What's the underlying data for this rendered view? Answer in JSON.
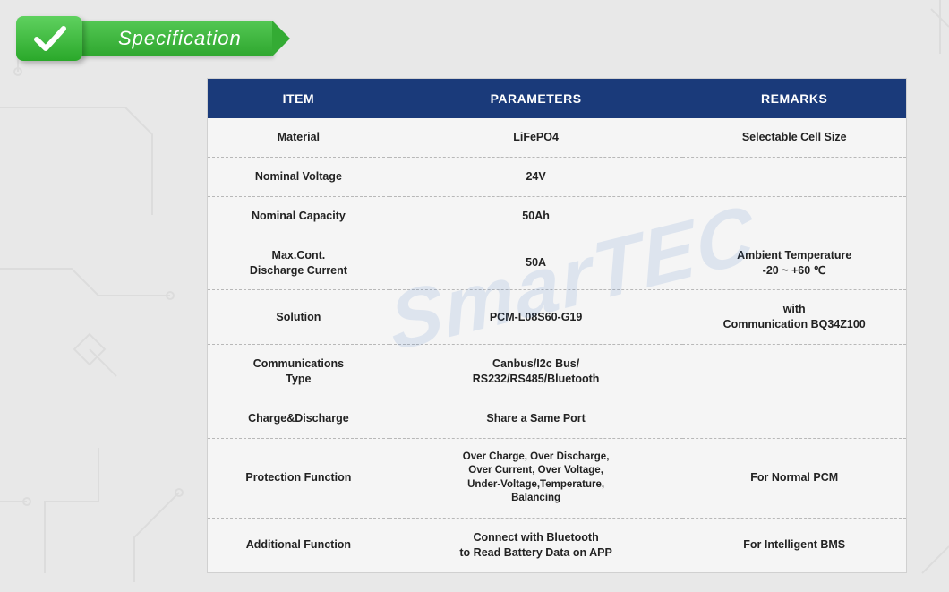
{
  "banner": {
    "title": "Specification",
    "accent_gradient_top": "#5fd15f",
    "accent_gradient_bottom": "#2aa82a",
    "check_color": "#ffffff"
  },
  "watermark_text": "SmarTEC",
  "table": {
    "header_bg": "#1a3a7a",
    "header_fg": "#ffffff",
    "row_bg": "#f5f5f5",
    "border_color": "#b8b8b8",
    "columns": [
      "ITEM",
      "PARAMETERS",
      "REMARKS"
    ],
    "rows": [
      {
        "item": "Material",
        "params": "LiFePO4",
        "remarks": "Selectable Cell Size"
      },
      {
        "item": "Nominal Voltage",
        "params": "24V",
        "remarks": ""
      },
      {
        "item": "Nominal Capacity",
        "params": "50Ah",
        "remarks": ""
      },
      {
        "item": "Max.Cont.\nDischarge Current",
        "params": "50A",
        "remarks": "Ambient Temperature\n-20 ~ +60 ℃"
      },
      {
        "item": "Solution",
        "params": "PCM-L08S60-G19",
        "remarks": "with\nCommunication BQ34Z100"
      },
      {
        "item": "Communications\nType",
        "params": "Canbus/I2c Bus/\nRS232/RS485/Bluetooth",
        "remarks": ""
      },
      {
        "item": "Charge&Discharge",
        "params": "Share a Same Port",
        "remarks": ""
      },
      {
        "item": "Protection Function",
        "params": "Over Charge, Over Discharge,\nOver Current, Over Voltage,\nUnder-Voltage,Temperature,\nBalancing",
        "remarks": "For Normal PCM",
        "small": true
      },
      {
        "item": "Additional Function",
        "params": "Connect with Bluetooth\nto Read Battery Data on APP",
        "remarks": "For Intelligent BMS"
      }
    ]
  },
  "background": {
    "bg_color": "#e8e8e8",
    "circuit_stroke": "#bcbcbc"
  }
}
